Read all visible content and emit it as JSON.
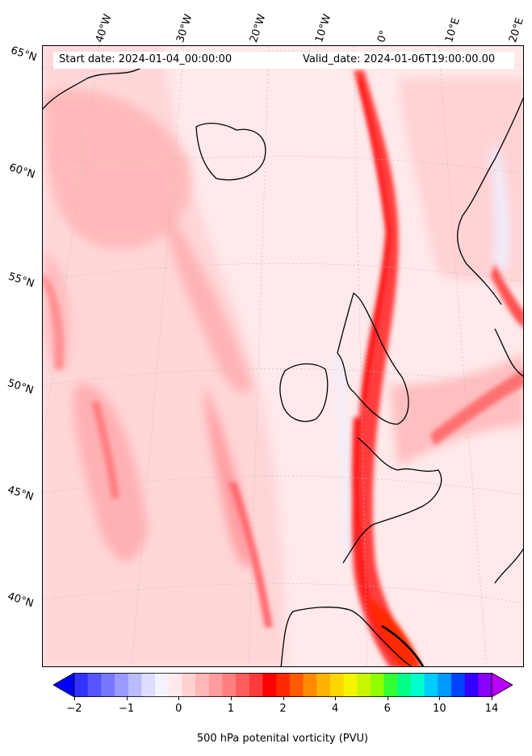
{
  "header": {
    "start_date": "Start date: 2024-01-04_00:00:00",
    "valid_date": "Valid_date: 2024-01-06T19:00:00.00"
  },
  "map": {
    "projection": "lambert-conformal",
    "field": "500 hPa potential vorticity",
    "coastline_color": "#000000",
    "latitude_labels": [
      "65°N",
      "60°N",
      "55°N",
      "50°N",
      "45°N",
      "40°N"
    ],
    "longitude_labels": [
      "40°W",
      "30°W",
      "20°W",
      "10°W",
      "0°",
      "10°E",
      "20°E"
    ]
  },
  "colorbar": {
    "label": "500 hPa potenital vorticity (PVU)",
    "ticks": [
      "−2",
      "−1",
      "0",
      "1",
      "2",
      "4",
      "6",
      "10",
      "14"
    ],
    "extend": "both",
    "colors": [
      "#0000ff",
      "#3333ff",
      "#5555ff",
      "#7777ff",
      "#9999ff",
      "#bbbbff",
      "#ddddff",
      "#f3f3ff",
      "#ffe9ea",
      "#ffd0d0",
      "#ffb6b6",
      "#ff9c9c",
      "#ff7f7f",
      "#ff5c5c",
      "#ff3a3a",
      "#ff0000",
      "#ff2a00",
      "#ff5a00",
      "#ff8a00",
      "#ffb300",
      "#ffd600",
      "#f5f500",
      "#c9f500",
      "#8fff00",
      "#33ff33",
      "#00ff88",
      "#00ffcc",
      "#00ccff",
      "#0099ff",
      "#0044ff",
      "#3300ff",
      "#8800ff",
      "#bb00ff"
    ]
  }
}
